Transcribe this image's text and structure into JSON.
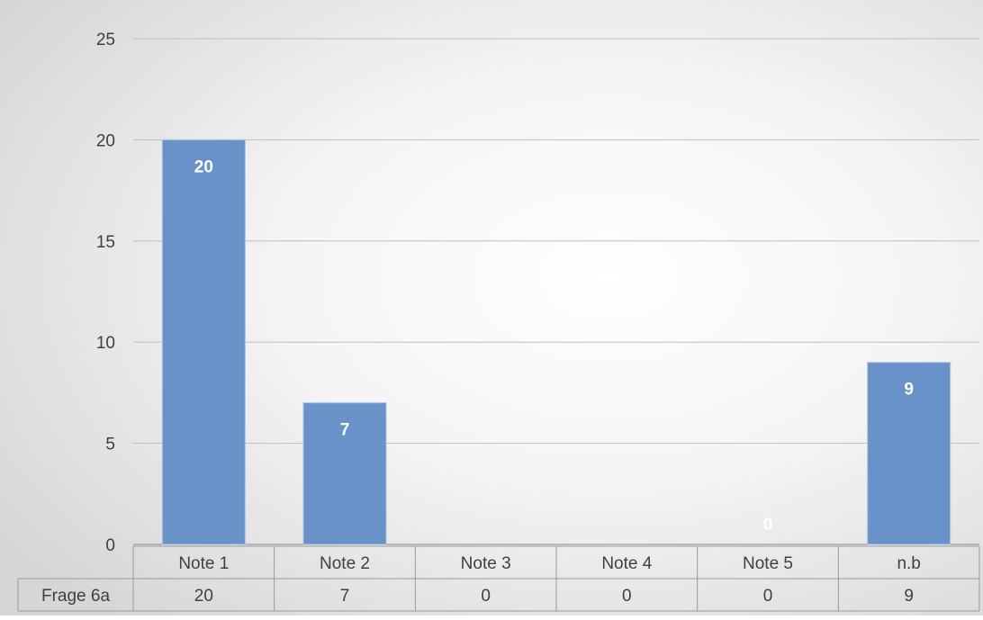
{
  "chart_data": {
    "type": "bar",
    "title": "",
    "xlabel": "",
    "ylabel": "",
    "categories": [
      "Note 1",
      "Note 2",
      "Note 3",
      "Note 4",
      "Note 5",
      "n.b"
    ],
    "series": [
      {
        "name": "Frage 6a",
        "values": [
          20,
          7,
          0,
          0,
          0,
          9
        ]
      }
    ],
    "ylim": [
      0,
      25
    ],
    "y_ticks": [
      0,
      5,
      10,
      15,
      20,
      25
    ],
    "grid": true,
    "data_labels": true,
    "data_table": true,
    "colors": {
      "bar": "#6993C8",
      "bar_edge": "#A9C3E3",
      "data_label": "#ffffff",
      "gridline": "#BFBFBF",
      "text": "#404040",
      "table_border": "#9A9A9A"
    }
  }
}
